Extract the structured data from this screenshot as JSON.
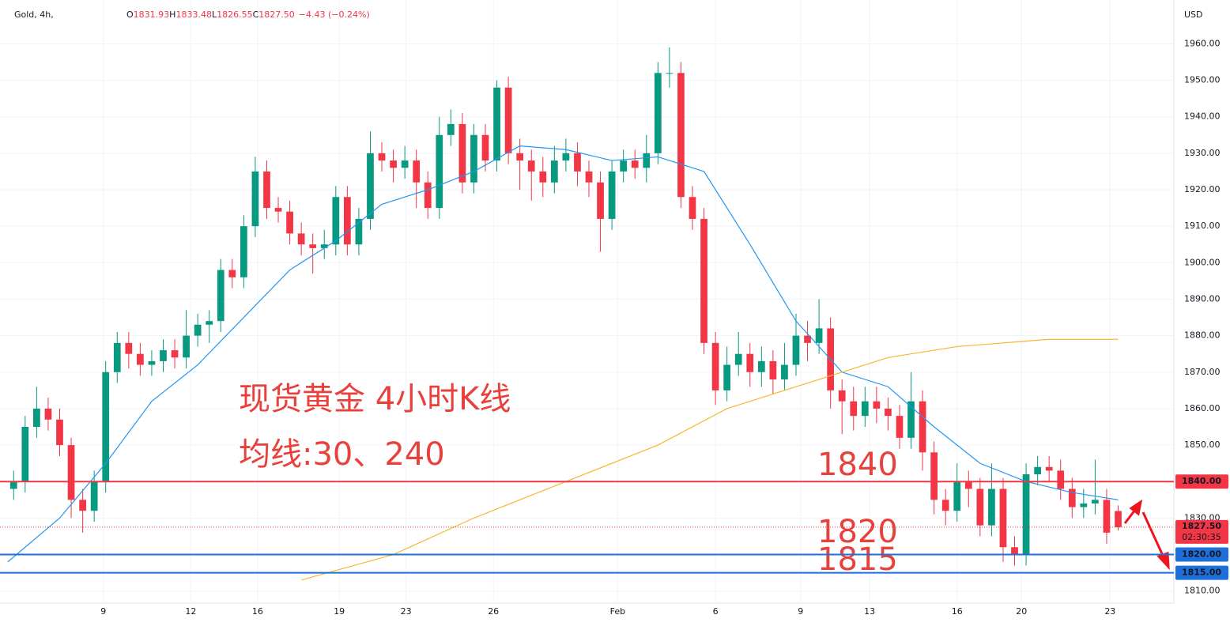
{
  "header": {
    "symbol": "Gold, 4h,",
    "fields": [
      "O",
      "1831.93",
      "H",
      "1833.48",
      "L",
      "1826.55",
      "C",
      "1827.50",
      "−4.43 (−0.24%)"
    ],
    "currency": "USD"
  },
  "chart_data": {
    "type": "candlestick",
    "up_color": "#089981",
    "down_color": "#f23645",
    "xlim": [
      -0.5,
      100.5
    ],
    "ylim": [
      1803,
      1972
    ],
    "xticks": [
      {
        "value": 7.8,
        "label": "9"
      },
      {
        "value": 15.4,
        "label": "12"
      },
      {
        "value": 21.2,
        "label": "16"
      },
      {
        "value": 28.3,
        "label": "19"
      },
      {
        "value": 34.1,
        "label": "23"
      },
      {
        "value": 41.7,
        "label": "26"
      },
      {
        "value": 52.5,
        "label": "Feb"
      },
      {
        "value": 61,
        "label": "6"
      },
      {
        "value": 68.4,
        "label": "9"
      },
      {
        "value": 74.4,
        "label": "13"
      },
      {
        "value": 82,
        "label": "16"
      },
      {
        "value": 87.6,
        "label": "20"
      },
      {
        "value": 95.3,
        "label": "23"
      }
    ],
    "yticks": [
      {
        "value": 1810,
        "label": "1810.00"
      },
      {
        "value": 1820,
        "label": "1820.00"
      },
      {
        "value": 1830,
        "label": "1830.00"
      },
      {
        "value": 1840,
        "label": "1840.00"
      },
      {
        "value": 1850,
        "label": "1850.00"
      },
      {
        "value": 1860,
        "label": "1860.00"
      },
      {
        "value": 1870,
        "label": "1870.00"
      },
      {
        "value": 1880,
        "label": "1880.00"
      },
      {
        "value": 1890,
        "label": "1890.00"
      },
      {
        "value": 1900,
        "label": "1900.00"
      },
      {
        "value": 1910,
        "label": "1910.00"
      },
      {
        "value": 1920,
        "label": "1920.00"
      },
      {
        "value": 1930,
        "label": "1930.00"
      },
      {
        "value": 1940,
        "label": "1940.00"
      },
      {
        "value": 1950,
        "label": "1950.00"
      },
      {
        "value": 1960,
        "label": "1960.00"
      }
    ],
    "open": [
      1838,
      1840,
      1855,
      1860,
      1857,
      1850,
      1835,
      1832,
      1840,
      1870,
      1878,
      1875,
      1872,
      1873,
      1876,
      1874,
      1880,
      1883,
      1884,
      1898,
      1896,
      1910,
      1925,
      1915,
      1914,
      1908,
      1905,
      1904,
      1905,
      1918,
      1905,
      1912,
      1930,
      1928,
      1926,
      1928,
      1922,
      1915,
      1935,
      1938,
      1922,
      1935,
      1928,
      1948,
      1930,
      1928,
      1925,
      1922,
      1928,
      1930,
      1925,
      1922,
      1912,
      1925,
      1928,
      1926,
      1930,
      1952,
      1952,
      1918,
      1912,
      1878,
      1865,
      1872,
      1875,
      1870,
      1873,
      1868,
      1872,
      1880,
      1878,
      1882,
      1865,
      1862,
      1858,
      1862,
      1860,
      1858,
      1852,
      1862,
      1848,
      1835,
      1832,
      1840,
      1838,
      1828,
      1838,
      1822,
      1820,
      1842,
      1844,
      1843,
      1838,
      1833,
      1834,
      1835,
      1831.93
    ],
    "high": [
      1843,
      1858,
      1866,
      1863,
      1860,
      1852,
      1838,
      1843,
      1873,
      1881,
      1881,
      1878,
      1876,
      1879,
      1879,
      1887,
      1886,
      1887,
      1901,
      1901,
      1913,
      1929,
      1928,
      1918,
      1917,
      1911,
      1908,
      1909,
      1921,
      1921,
      1915,
      1936,
      1933,
      1931,
      1932,
      1931,
      1925,
      1940,
      1942,
      1941,
      1938,
      1938,
      1950,
      1951,
      1934,
      1931,
      1929,
      1932,
      1934,
      1933,
      1928,
      1925,
      1928,
      1931,
      1931,
      1935,
      1955,
      1959,
      1955,
      1921,
      1915,
      1881,
      1877,
      1881,
      1878,
      1877,
      1876,
      1878,
      1886,
      1884,
      1890,
      1885,
      1868,
      1866,
      1866,
      1866,
      1863,
      1861,
      1870,
      1865,
      1851,
      1838,
      1845,
      1843,
      1841,
      1845,
      1841,
      1825,
      1845,
      1847,
      1847,
      1846,
      1841,
      1838,
      1846,
      1838,
      1833.48
    ],
    "low": [
      1835,
      1837,
      1852,
      1854,
      1847,
      1830,
      1826,
      1829,
      1837,
      1867,
      1871,
      1869,
      1869,
      1870,
      1871,
      1871,
      1877,
      1878,
      1881,
      1893,
      1893,
      1907,
      1912,
      1911,
      1905,
      1902,
      1897,
      1901,
      1902,
      1902,
      1902,
      1909,
      1925,
      1922,
      1923,
      1915,
      1912,
      1912,
      1932,
      1919,
      1919,
      1925,
      1925,
      1927,
      1920,
      1917,
      1918,
      1919,
      1925,
      1921,
      1918,
      1903,
      1909,
      1922,
      1923,
      1922,
      1927,
      1948,
      1915,
      1909,
      1875,
      1861,
      1862,
      1869,
      1866,
      1866,
      1864,
      1865,
      1869,
      1873,
      1875,
      1860,
      1853,
      1854,
      1855,
      1856,
      1854,
      1849,
      1849,
      1843,
      1831,
      1828,
      1829,
      1833,
      1825,
      1825,
      1818,
      1817,
      1817,
      1839,
      1840,
      1835,
      1830,
      1830,
      1831,
      1823,
      1826.55
    ],
    "close": [
      1840,
      1855,
      1860,
      1857,
      1850,
      1835,
      1832,
      1840,
      1870,
      1878,
      1875,
      1872,
      1873,
      1876,
      1874,
      1880,
      1883,
      1884,
      1898,
      1896,
      1910,
      1925,
      1915,
      1914,
      1908,
      1905,
      1904,
      1905,
      1918,
      1905,
      1912,
      1930,
      1928,
      1926,
      1928,
      1922,
      1915,
      1935,
      1938,
      1922,
      1935,
      1928,
      1948,
      1930,
      1928,
      1925,
      1922,
      1928,
      1930,
      1925,
      1922,
      1912,
      1925,
      1928,
      1926,
      1930,
      1952,
      1952,
      1918,
      1912,
      1878,
      1865,
      1872,
      1875,
      1870,
      1873,
      1868,
      1872,
      1880,
      1878,
      1882,
      1865,
      1862,
      1858,
      1862,
      1860,
      1858,
      1852,
      1862,
      1848,
      1835,
      1832,
      1840,
      1838,
      1828,
      1838,
      1822,
      1820,
      1842,
      1844,
      1843,
      1838,
      1833,
      1834,
      1835,
      1826,
      1827.5
    ],
    "series": [
      {
        "color": "#2196f3",
        "x": [
          -0.5,
          4,
          8,
          12,
          16,
          20,
          24,
          28,
          32,
          36,
          40,
          44,
          48,
          52,
          56,
          60,
          64,
          68,
          72,
          76,
          80,
          84,
          88,
          92,
          96
        ],
        "values": [
          1818,
          1830,
          1845,
          1862,
          1872,
          1885,
          1898,
          1906,
          1916,
          1920,
          1925,
          1932,
          1931,
          1928,
          1929,
          1925,
          1905,
          1884,
          1870,
          1866,
          1855,
          1845,
          1840,
          1837,
          1835
        ]
      },
      {
        "color": "#f5b82e",
        "x": [
          25,
          33,
          40,
          48,
          56,
          62,
          68,
          72,
          76,
          82,
          90,
          96
        ],
        "values": [
          1813,
          1820,
          1830,
          1840,
          1850,
          1860,
          1866,
          1870,
          1874,
          1877,
          1879,
          1879
        ]
      }
    ],
    "hlines": [
      {
        "value": 1840,
        "label": "1840.00",
        "color": "#f23645"
      },
      {
        "value": 1820,
        "label": "1820.00",
        "color": "#1e6fd9"
      },
      {
        "value": 1815,
        "label": "1815.00",
        "color": "#1e6fd9"
      }
    ],
    "last_price": {
      "value": 1827.5,
      "label": "1827.50",
      "countdown": "02:30:35",
      "color": "#f23645"
    },
    "annotations": [
      "现货黄金 4小时K线",
      "均线:30、240",
      "1840",
      "1820",
      "1815"
    ]
  }
}
